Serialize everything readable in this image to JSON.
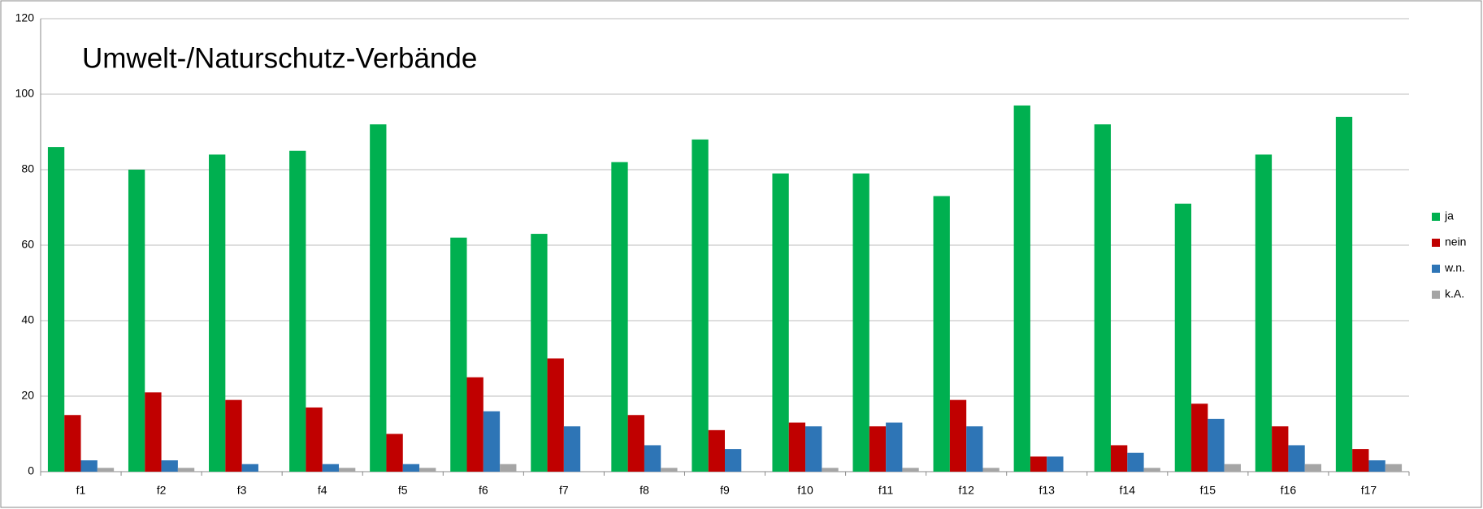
{
  "chart_data": {
    "type": "bar",
    "title": "Umwelt-/Naturschutz-Verbände",
    "categories": [
      "f1",
      "f2",
      "f3",
      "f4",
      "f5",
      "f6",
      "f7",
      "f8",
      "f9",
      "f10",
      "f11",
      "f12",
      "f13",
      "f14",
      "f15",
      "f16",
      "f17"
    ],
    "series": [
      {
        "name": "ja",
        "color": "#00b050",
        "values": [
          86,
          80,
          84,
          85,
          92,
          62,
          63,
          82,
          88,
          79,
          79,
          73,
          97,
          92,
          71,
          84,
          94
        ]
      },
      {
        "name": "nein",
        "color": "#c00000",
        "values": [
          15,
          21,
          19,
          17,
          10,
          25,
          30,
          15,
          11,
          13,
          12,
          19,
          4,
          7,
          18,
          12,
          6
        ]
      },
      {
        "name": "w.n.",
        "color": "#2e75b6",
        "values": [
          3,
          3,
          2,
          2,
          2,
          16,
          12,
          7,
          6,
          12,
          13,
          12,
          4,
          5,
          14,
          7,
          3
        ]
      },
      {
        "name": "k.A.",
        "color": "#a5a5a5",
        "values": [
          1,
          1,
          0,
          1,
          1,
          2,
          0,
          1,
          0,
          1,
          1,
          1,
          0,
          1,
          2,
          2,
          2
        ]
      }
    ],
    "ylim": [
      0,
      120
    ],
    "yticks": [
      0,
      20,
      40,
      60,
      80,
      100,
      120
    ],
    "grid": true,
    "legend": "right"
  }
}
